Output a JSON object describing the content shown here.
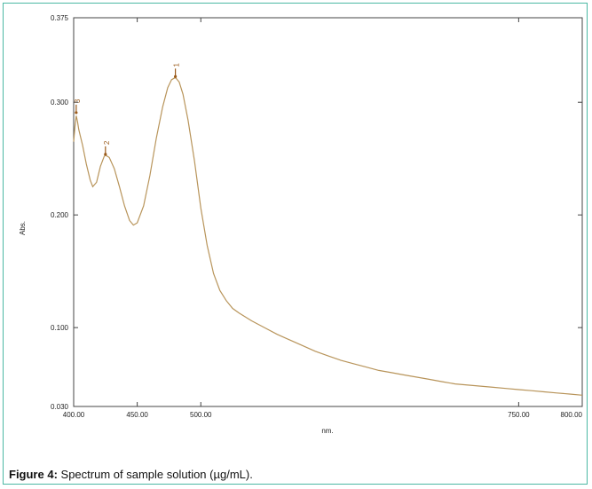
{
  "caption": {
    "label": "Figure 4:",
    "text": " Spectrum of sample solution (µg/mL)."
  },
  "colors": {
    "frame": "#4bb8a4",
    "curve": "#b8945a",
    "peak_marker": "#9a5a1a"
  },
  "chart_data": {
    "type": "line",
    "title": "",
    "xlabel": "nm.",
    "ylabel": "Abs.",
    "xlim": [
      400,
      800
    ],
    "ylim": [
      0.03,
      0.375
    ],
    "x_ticks": [
      {
        "value": 400,
        "label": "400.00"
      },
      {
        "value": 450,
        "label": "450.00"
      },
      {
        "value": 500,
        "label": "500.00"
      },
      {
        "value": 750,
        "label": "750.00"
      },
      {
        "value": 800,
        "label": "800.00"
      }
    ],
    "y_ticks": [
      {
        "value": 0.03,
        "label": "0.030"
      },
      {
        "value": 0.1,
        "label": "0.100"
      },
      {
        "value": 0.2,
        "label": "0.200"
      },
      {
        "value": 0.3,
        "label": "0.300"
      },
      {
        "value": 0.375,
        "label": "0.375"
      }
    ],
    "grid": false,
    "peaks": [
      {
        "label": "1",
        "x": 480,
        "y": 0.322
      },
      {
        "label": "2",
        "x": 425,
        "y": 0.253
      },
      {
        "label": "3",
        "x": 402,
        "y": 0.29
      }
    ],
    "series": [
      {
        "x": [
          400,
          401,
          402,
          403,
          404,
          405,
          407,
          410,
          413,
          415,
          418,
          421,
          424,
          425,
          428,
          432,
          436,
          440,
          444,
          447,
          450,
          455,
          460,
          465,
          470,
          474,
          477,
          480,
          483,
          486,
          490,
          495,
          500,
          505,
          510,
          515,
          520,
          525,
          530,
          540,
          550,
          560,
          570,
          580,
          590,
          600,
          610,
          620,
          630,
          640,
          650,
          660,
          670,
          680,
          690,
          700,
          710,
          720,
          730,
          740,
          750,
          760,
          770,
          780,
          790,
          800
        ],
        "y": [
          0.265,
          0.278,
          0.288,
          0.283,
          0.276,
          0.271,
          0.262,
          0.245,
          0.231,
          0.225,
          0.229,
          0.243,
          0.252,
          0.253,
          0.251,
          0.241,
          0.225,
          0.208,
          0.195,
          0.191,
          0.193,
          0.208,
          0.235,
          0.268,
          0.296,
          0.313,
          0.32,
          0.322,
          0.318,
          0.307,
          0.284,
          0.248,
          0.206,
          0.173,
          0.148,
          0.133,
          0.124,
          0.117,
          0.113,
          0.106,
          0.1,
          0.094,
          0.089,
          0.084,
          0.079,
          0.075,
          0.071,
          0.068,
          0.065,
          0.062,
          0.06,
          0.058,
          0.056,
          0.054,
          0.052,
          0.05,
          0.049,
          0.048,
          0.047,
          0.046,
          0.045,
          0.044,
          0.043,
          0.042,
          0.041,
          0.04
        ]
      }
    ]
  }
}
